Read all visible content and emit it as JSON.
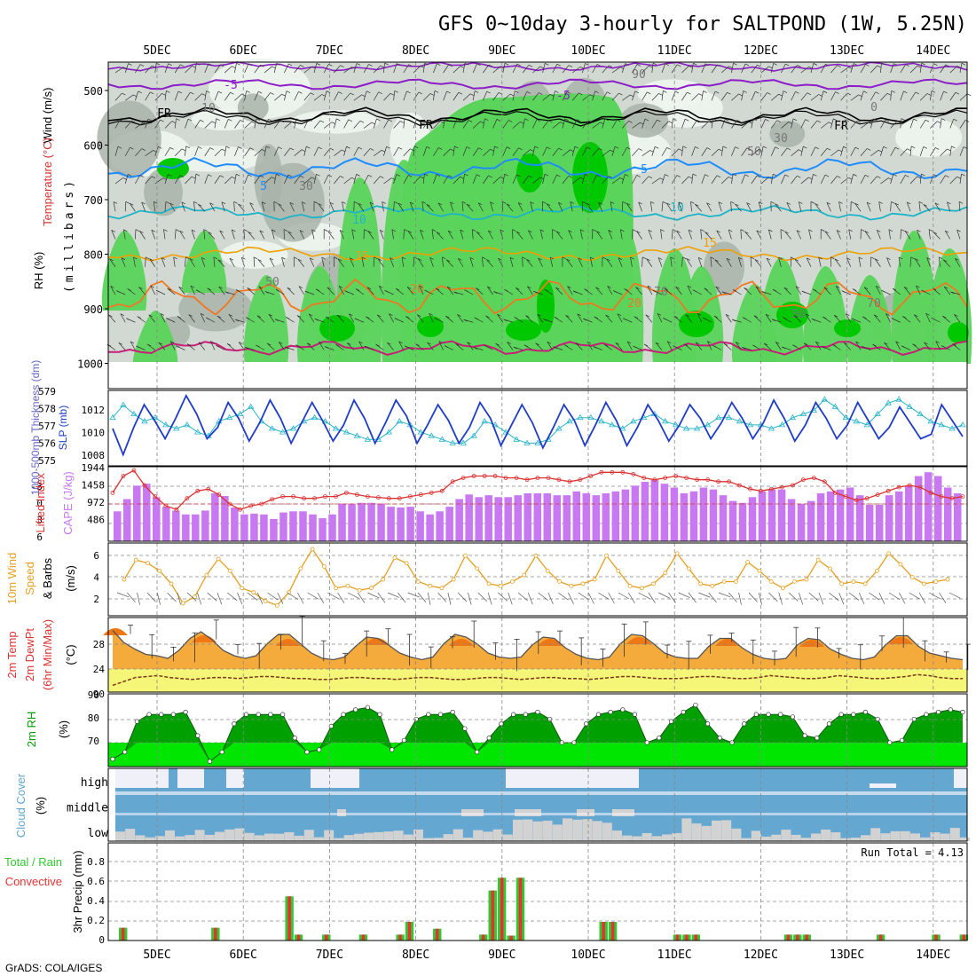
{
  "title": "GFS 0~10day 3-hourly for SALTPOND (1W, 5.25N)",
  "footer": "GrADS: COLA/IGES",
  "dates": [
    "5DEC",
    "6DEC",
    "7DEC",
    "8DEC",
    "9DEC",
    "10DEC",
    "11DEC",
    "12DEC",
    "13DEC",
    "14DEC"
  ],
  "colors": {
    "rh_dark": "#00c800",
    "rh_mid": "#5ad45a",
    "rh_light": "#8ee08e",
    "grey_dark": "#a9b3a9",
    "grey_light": "#d2d9d2",
    "white_green": "#eef5ee",
    "purple": "#8c1ec8",
    "blue": "#1e8cff",
    "cyan": "#1eb4c8",
    "orange": "#f0a000",
    "darkorange": "#f07820",
    "magenta": "#c81e78",
    "slp": "#1e3cc8",
    "thick": "#28b4c8",
    "cape": "#c878f0",
    "li": "#dc3232",
    "wind": "#e6a020",
    "temp_fill": "#f5aa3c",
    "temp_max": "#f07814",
    "dew_fill": "#f5f578",
    "rh2m_dark": "#00a000",
    "rh2m_light": "#00e600",
    "cloud_blue": "#64a8d2",
    "cloud_white": "#f0f0f8",
    "cloud_grey": "#d2d2d2",
    "precip_green": "#32c832",
    "precip_red": "#e63232"
  },
  "panels": {
    "profile": {
      "label_wind": "Wind (m/s)",
      "label_temp": "Temperature (°C)",
      "label_rh": "RH (%)",
      "label_mb": "(millibars)",
      "pressure_ticks": [
        "500",
        "600",
        "700",
        "800",
        "900",
        "1000"
      ],
      "contour_labels": [
        "-5",
        "-5",
        "FR",
        "FR",
        "FR",
        "5",
        "5",
        "10",
        "10",
        "15",
        "15",
        "20",
        "20",
        "50",
        "30",
        "30",
        "50",
        "70",
        "70",
        "10",
        "0",
        "90",
        "50"
      ]
    },
    "slp": {
      "label_thick": "1000-500mb Thickness (dm)",
      "label_slp": "SLP (mb)",
      "thick_ticks": [
        "579",
        "578",
        "577",
        "576",
        "575"
      ],
      "slp_ticks": [
        "1012",
        "1010",
        "1008"
      ]
    },
    "cape": {
      "label_li": "Lifted Index",
      "label_cape": "CAPE (J/kg)",
      "li_ticks": [
        "-3",
        "0",
        "3",
        "6"
      ],
      "cape_ticks": [
        "1944",
        "1458",
        "972",
        "486"
      ]
    },
    "wind10": {
      "label1": "10m Wind",
      "label2": "Speed",
      "label3": "& Barbs",
      "unit": "(m/s)",
      "ticks": [
        "6",
        "4",
        "2"
      ]
    },
    "temp": {
      "label1": "2m Temp",
      "label2": "2m DewPt",
      "label3": "(6hr Min/Max)",
      "unit": "(°C)",
      "ticks": [
        "28",
        "24",
        "90"
      ]
    },
    "rh2m": {
      "label": "2m RH",
      "unit": "(%)",
      "ticks": [
        "90",
        "80",
        "70"
      ]
    },
    "cloud": {
      "label": "Cloud Cover",
      "unit": "(%)",
      "levels": [
        "high",
        "middle",
        "low"
      ]
    },
    "precip": {
      "label1": "Total / Rain",
      "label2": "Convective",
      "ylabel": "3hr Precip (mm)",
      "run_total": "Run Total = 4.13",
      "ticks": [
        "0.8",
        "0.6",
        "0.4",
        "0.2",
        "0"
      ]
    }
  },
  "chart_data": [
    {
      "type": "line",
      "title": "1000-500mb Thickness (dm) / SLP (mb)",
      "x_step_hours": 3,
      "series": [
        {
          "name": "SLP (mb)",
          "values": [
            1010.5,
            1008.2,
            1010.6,
            1012.6,
            1011.2,
            1009.6,
            1011.4,
            1013.4,
            1011.8,
            1009.6,
            1010.6,
            1012.8,
            1011.4,
            1009.4,
            1011.0,
            1013.0,
            1011.4,
            1009.2,
            1011.0,
            1012.8,
            1011.2,
            1009.4,
            1010.8,
            1013.0,
            1011.4,
            1009.2,
            1011.0,
            1013.0,
            1011.6,
            1009.2,
            1010.8,
            1012.6,
            1011.2,
            1009.2,
            1010.6,
            1012.8,
            1011.4,
            1009.0,
            1010.8,
            1012.6,
            1011.0,
            1008.8,
            1010.6,
            1012.6,
            1011.2,
            1009.0,
            1010.8,
            1012.8,
            1011.2,
            1009.0,
            1010.6,
            1012.6,
            1011.2,
            1009.4,
            1010.8,
            1012.6,
            1011.4,
            1009.6,
            1011.0,
            1012.8,
            1011.4,
            1009.6,
            1011.0,
            1013.0,
            1011.4,
            1009.4,
            1010.8,
            1012.8,
            1011.4,
            1009.6,
            1010.8,
            1012.8,
            1011.2,
            1009.6,
            1010.6,
            1012.4,
            1011.0,
            1009.6,
            1010.0,
            1012.6,
            1011.2,
            1009.8
          ]
        },
        {
          "name": "Thickness (dm)",
          "values": [
            577.6,
            578.3,
            577.8,
            577.4,
            577.6,
            577.2,
            577.0,
            577.2,
            576.8,
            576.6,
            577.4,
            577.6,
            577.8,
            578.2,
            577.4,
            577.0,
            576.8,
            577.0,
            577.4,
            577.6,
            577.4,
            577.0,
            576.8,
            576.6,
            576.4,
            576.4,
            576.8,
            577.4,
            577.2,
            576.8,
            576.6,
            576.4,
            576.2,
            576.2,
            576.6,
            577.4,
            577.2,
            576.8,
            576.4,
            576.2,
            576.2,
            576.4,
            577.0,
            577.4,
            577.6,
            577.6,
            577.4,
            577.2,
            577.0,
            577.4,
            577.6,
            577.8,
            577.4,
            577.2,
            577.0,
            577.0,
            577.2,
            577.6,
            577.6,
            577.4,
            577.2,
            577.2,
            577.0,
            577.2,
            577.6,
            577.8,
            578.0,
            578.6,
            578.2,
            577.6,
            577.4,
            577.2,
            577.8,
            578.4,
            578.6,
            578.2,
            577.8,
            577.4,
            577.2,
            577.0,
            577.2
          ]
        }
      ]
    },
    {
      "type": "bar",
      "title": "CAPE (J/kg) / Lifted Index",
      "series": [
        {
          "name": "CAPE (J/kg)",
          "values": [
            780,
            1100,
            1450,
            1500,
            1150,
            900,
            800,
            700,
            700,
            800,
            1250,
            1180,
            880,
            700,
            720,
            700,
            580,
            750,
            780,
            780,
            700,
            600,
            700,
            980,
            980,
            1000,
            1000,
            980,
            900,
            880,
            900,
            780,
            700,
            780,
            900,
            1100,
            1220,
            1150,
            1200,
            1150,
            1150,
            1200,
            1250,
            1250,
            1250,
            1200,
            1200,
            1300,
            1250,
            1200,
            1250,
            1300,
            1350,
            1450,
            1550,
            1600,
            1500,
            1400,
            1250,
            1300,
            1400,
            1350,
            1200,
            1050,
            1000,
            1150,
            1300,
            1350,
            1350,
            1100,
            980,
            1050,
            1250,
            1300,
            1350,
            1400,
            1200,
            950,
            950,
            1200,
            1300,
            1450,
            1700,
            1800,
            1700,
            1400,
            1250
          ]
        },
        {
          "name": "Lifted Index",
          "values": [
            -1.2,
            -3.0,
            -3.6,
            -2.0,
            -0.8,
            0.2,
            0.6,
            -0.6,
            -1.4,
            -1.6,
            -1.0,
            0.0,
            0.6,
            0.2,
            0.0,
            -0.5,
            -0.8,
            -0.8,
            -0.6,
            -0.6,
            -0.8,
            -0.8,
            -1.2,
            -1.0,
            -0.8,
            -0.7,
            -0.6,
            -0.6,
            -0.8,
            -1.0,
            -1.2,
            -1.4,
            -2.4,
            -2.8,
            -3.0,
            -3.0,
            -3.0,
            -2.8,
            -2.8,
            -2.6,
            -2.8,
            -2.8,
            -2.6,
            -2.4,
            -2.6,
            -3.0,
            -3.4,
            -3.4,
            -3.4,
            -3.2,
            -2.8,
            -2.6,
            -2.8,
            -3.0,
            -2.8,
            -2.6,
            -2.6,
            -2.4,
            -2.4,
            -2.0,
            -1.6,
            -1.4,
            -1.6,
            -1.8,
            -2.0,
            -2.6,
            -2.8,
            -2.4,
            -1.2,
            -0.8,
            -0.4,
            -0.6,
            -1.0,
            -1.4,
            -1.8,
            -2.0,
            -1.8,
            -1.2,
            -0.8,
            -0.6,
            -0.8
          ]
        }
      ]
    },
    {
      "type": "line",
      "title": "10m Wind Speed (m/s)",
      "series": [
        {
          "name": "Speed",
          "values": [
            3.8,
            5.6,
            5.3,
            4.6,
            3.4,
            1.6,
            2.2,
            4.2,
            5.7,
            4.6,
            3.0,
            2.6,
            1.8,
            1.4,
            2.6,
            4.8,
            6.6,
            5.0,
            3.0,
            3.2,
            2.8,
            3.0,
            3.8,
            5.8,
            5.3,
            3.6,
            3.2,
            3.0,
            3.8,
            6.0,
            4.8,
            3.4,
            3.2,
            3.6,
            4.2,
            6.0,
            4.6,
            3.6,
            3.2,
            3.4,
            3.8,
            6.0,
            4.6,
            3.2,
            3.0,
            3.4,
            4.4,
            6.2,
            4.8,
            3.4,
            3.2,
            3.6,
            3.6,
            5.4,
            4.6,
            3.6,
            3.0,
            3.6,
            3.8,
            5.6,
            4.8,
            3.4,
            3.6,
            3.4,
            4.6,
            6.2,
            5.2,
            4.0,
            3.4,
            3.6,
            3.8
          ]
        }
      ]
    },
    {
      "type": "area",
      "title": "2m Temp / 2m DewPt (°C)",
      "series": [
        {
          "name": "2m Temp",
          "values": [
            29.8,
            28.0,
            27.0,
            26.2,
            26.0,
            25.6,
            26.8,
            28.6,
            29.6,
            28.4,
            26.8,
            26.0,
            25.6,
            26.0,
            27.8,
            29.2,
            29.2,
            27.8,
            26.4,
            25.6,
            25.4,
            25.8,
            27.4,
            28.8,
            28.6,
            27.6,
            26.4,
            25.8,
            25.4,
            25.8,
            27.8,
            29.2,
            28.8,
            27.8,
            26.4,
            25.8,
            25.6,
            25.8,
            27.6,
            28.8,
            28.6,
            27.2,
            26.2,
            25.6,
            25.4,
            25.8,
            27.8,
            29.2,
            29.0,
            27.8,
            26.4,
            25.8,
            25.6,
            25.6,
            27.4,
            28.6,
            28.6,
            27.2,
            26.2,
            25.6,
            25.4,
            25.6,
            27.6,
            28.6,
            28.4,
            27.0,
            26.2,
            25.6,
            25.4,
            25.8,
            27.6,
            29.0,
            29.0,
            27.4,
            26.4,
            26.0,
            25.6,
            25.4
          ]
        },
        {
          "name": "2m DewPt",
          "values": [
            21.2,
            22.0,
            22.8,
            23.0,
            23.2,
            22.8,
            22.6,
            22.4,
            22.6,
            22.8,
            22.8,
            22.6,
            22.8,
            23.0,
            23.0,
            22.8,
            22.6,
            22.6,
            22.4,
            22.4,
            22.6,
            22.8,
            22.8,
            22.6,
            22.6,
            22.4,
            22.6,
            22.8,
            22.8,
            22.6,
            22.4,
            22.4,
            22.6,
            22.8,
            22.8,
            22.6,
            22.4,
            22.6,
            22.8,
            22.8,
            22.6,
            22.6,
            22.4,
            22.6,
            22.8,
            23.0,
            23.0,
            22.8,
            22.6,
            22.6,
            22.6,
            22.8,
            23.0,
            23.0,
            22.8,
            22.6,
            22.6,
            22.8,
            23.2,
            23.0,
            22.8,
            22.6,
            22.6,
            22.8,
            23.2,
            23.0,
            22.8,
            22.6,
            22.6,
            22.8,
            23.0,
            23.4,
            23.2,
            22.8,
            22.6,
            22.6
          ]
        }
      ]
    },
    {
      "type": "area",
      "title": "2m RH (%)",
      "series": [
        {
          "name": "2m RH",
          "values": [
            63,
            66,
            79,
            82,
            82,
            82,
            83,
            73,
            62,
            66,
            78,
            82,
            82,
            82,
            82,
            72,
            66,
            67,
            77,
            82,
            84,
            85,
            82,
            67,
            71,
            80,
            82,
            82,
            83,
            76,
            66,
            72,
            78,
            82,
            82,
            83,
            80,
            70,
            70,
            78,
            82,
            83,
            84,
            82,
            70,
            72,
            79,
            83,
            86,
            78,
            72,
            70,
            78,
            82,
            82,
            82,
            81,
            73,
            72,
            78,
            82,
            82,
            83,
            80,
            70,
            71,
            80,
            82,
            83,
            84,
            83
          ]
        }
      ]
    },
    {
      "type": "bar",
      "title": "3hr Precip (mm)",
      "ylim": [
        0,
        0.9
      ],
      "x_step_hours": 3,
      "series": [
        {
          "name": "Total",
          "values": [
            0.13,
            0,
            0,
            0,
            0,
            0,
            0,
            0,
            0,
            0,
            0.13,
            0,
            0,
            0,
            0,
            0,
            0,
            0,
            0.45,
            0.06,
            0,
            0,
            0.06,
            0,
            0,
            0,
            0.06,
            0,
            0,
            0,
            0.06,
            0.19,
            0,
            0,
            0.12,
            0,
            0,
            0,
            0,
            0.06,
            0.51,
            0.64,
            0.05,
            0.64,
            0,
            0,
            0,
            0,
            0,
            0,
            0,
            0,
            0.19,
            0.19,
            0,
            0,
            0,
            0,
            0,
            0,
            0.06,
            0.06,
            0.06,
            0,
            0,
            0,
            0,
            0,
            0,
            0,
            0,
            0,
            0.06,
            0.06,
            0.06,
            0,
            0,
            0,
            0,
            0,
            0,
            0,
            0.06,
            0,
            0,
            0,
            0,
            0,
            0.06,
            0,
            0,
            0.06
          ]
        },
        {
          "name": "Convective",
          "values": [
            0.13,
            0,
            0,
            0,
            0,
            0,
            0,
            0,
            0,
            0,
            0.13,
            0,
            0,
            0,
            0,
            0,
            0,
            0,
            0.45,
            0.06,
            0,
            0,
            0.06,
            0,
            0,
            0,
            0.06,
            0,
            0,
            0,
            0.06,
            0.19,
            0,
            0,
            0.12,
            0,
            0,
            0,
            0,
            0.06,
            0.51,
            0.64,
            0.05,
            0.64,
            0,
            0,
            0,
            0,
            0,
            0,
            0,
            0,
            0.19,
            0.19,
            0,
            0,
            0,
            0,
            0,
            0,
            0.06,
            0.06,
            0.06,
            0,
            0,
            0,
            0,
            0,
            0,
            0,
            0,
            0,
            0.06,
            0.06,
            0.06,
            0,
            0,
            0,
            0,
            0,
            0,
            0,
            0.06,
            0,
            0,
            0,
            0,
            0,
            0.06,
            0,
            0,
            0.06
          ]
        }
      ]
    }
  ]
}
